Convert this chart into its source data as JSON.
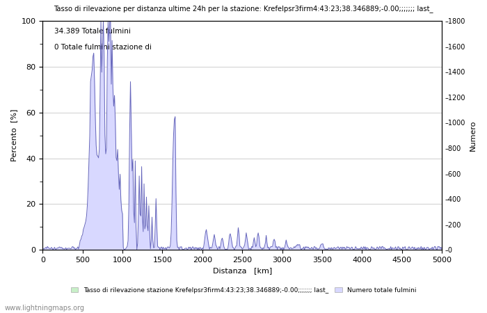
{
  "title": "Tasso di rilevazione per distanza ultime 24h per la stazione: Krefelpsr3firm4:43:23;38.346889;-0.00;;;;;;; last_",
  "xlabel": "Distanza   [km]",
  "ylabel_left": "Percento  [%]",
  "ylabel_right": "Numero",
  "annotation_line1": "34.389 Totale fulmini",
  "annotation_line2": "0 Totale fulmini stazione di",
  "legend_label1": "Tasso di rilevazione stazione Krefelpsr3firm4:43:23;38.346889;-0.00;;;;;;; last_",
  "legend_label2": "Numero totale fulmini",
  "watermark": "www.lightningmaps.org",
  "xlim": [
    0,
    5000
  ],
  "ylim_left": [
    0,
    100
  ],
  "ylim_right": [
    0,
    1800
  ],
  "yticks_left": [
    0,
    20,
    40,
    60,
    80,
    100
  ],
  "yticks_right": [
    0,
    200,
    400,
    600,
    800,
    1000,
    1200,
    1400,
    1600,
    1800
  ],
  "xticks": [
    0,
    500,
    1000,
    1500,
    2000,
    2500,
    3000,
    3500,
    4000,
    4500,
    5000
  ],
  "color_fill_green": "#c8f0c8",
  "color_fill_blue": "#d8d8ff",
  "color_line_blue": "#6666bb",
  "background_color": "#ffffff",
  "grid_color": "#bbbbbb"
}
